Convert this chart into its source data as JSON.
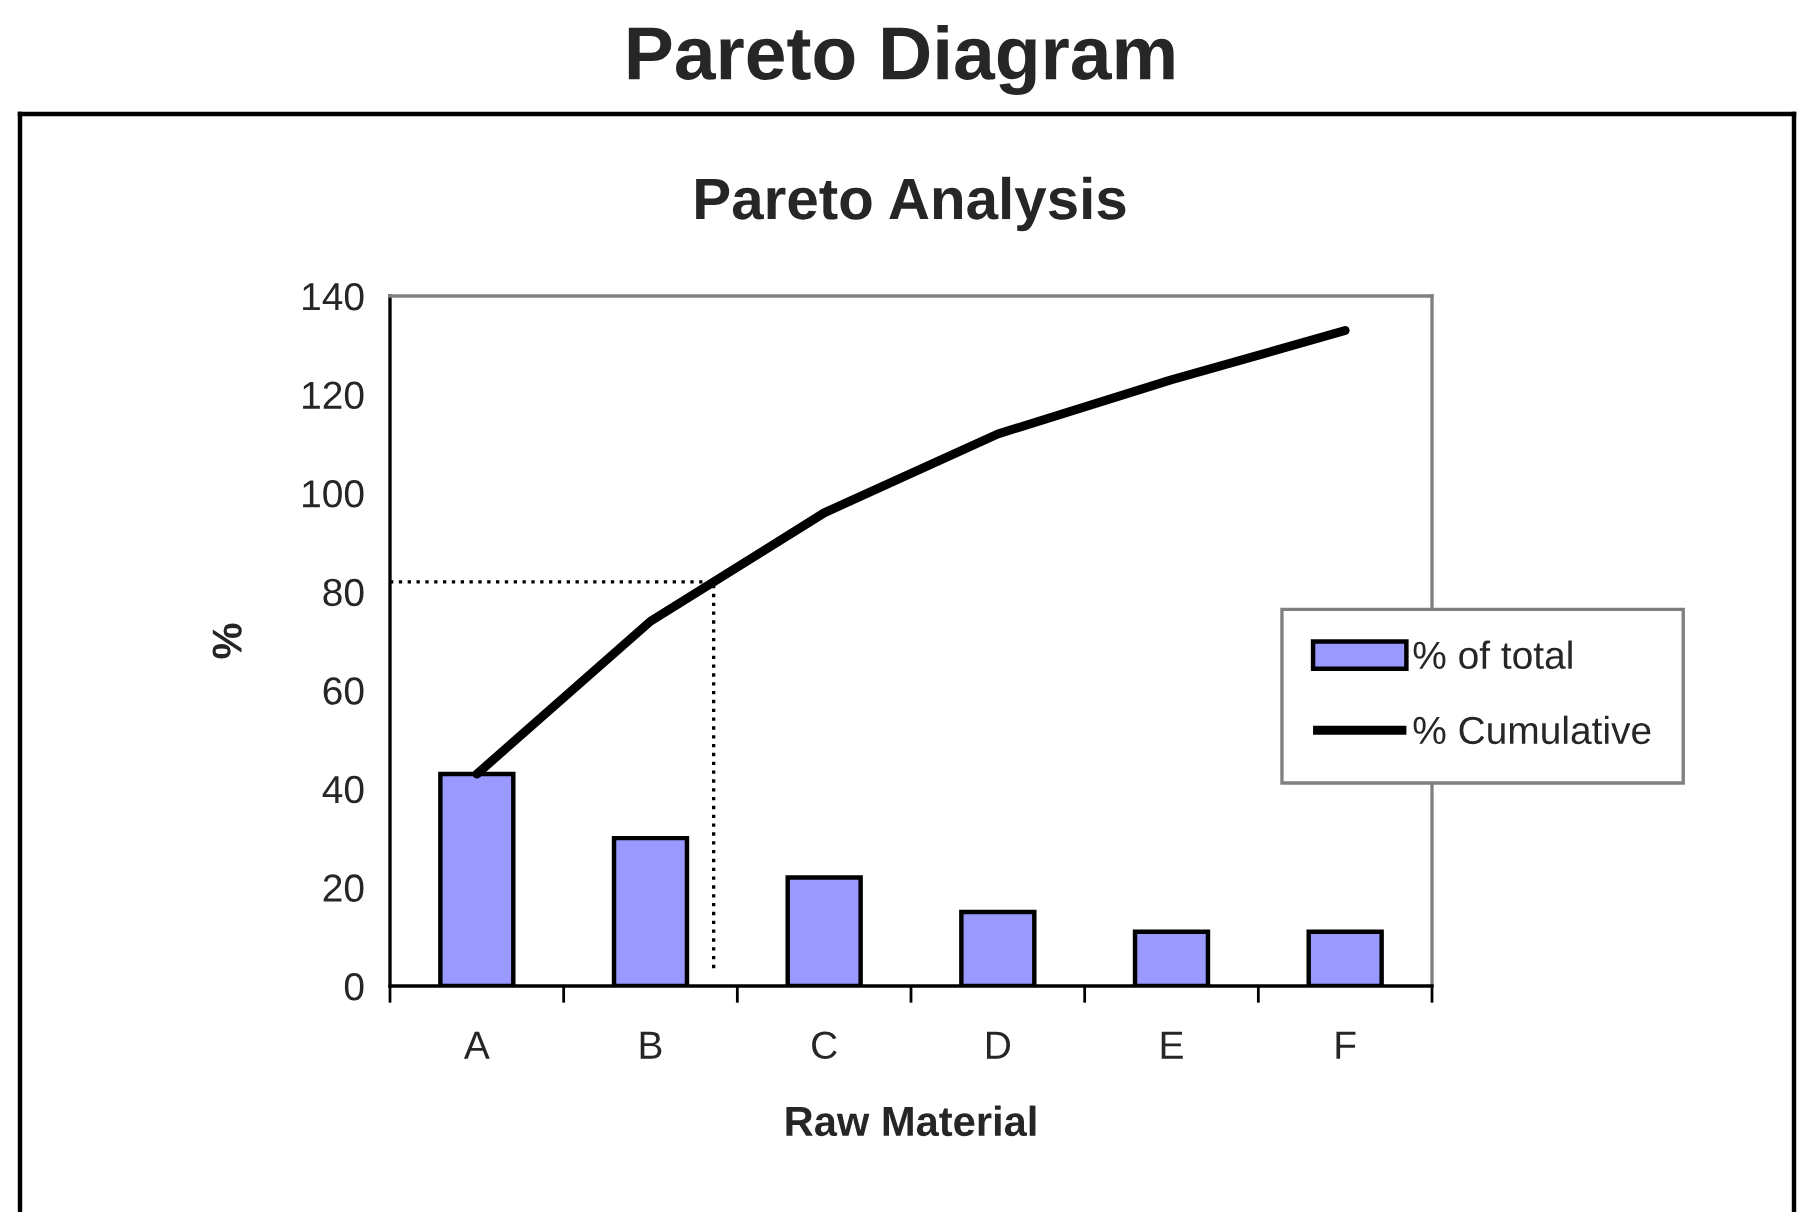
{
  "chart_data": {
    "type": "bar",
    "title": "Pareto Diagram",
    "subtitle": "Pareto Analysis",
    "xlabel": "Raw Material",
    "ylabel": "%",
    "categories": [
      "A",
      "B",
      "C",
      "D",
      "E",
      "F"
    ],
    "series": [
      {
        "name": "% of total",
        "color": "#9999ff",
        "values": [
          43,
          30,
          22,
          15,
          11,
          11
        ]
      },
      {
        "name": "% Cumulative",
        "type": "line",
        "color": "#000000",
        "values": [
          43,
          74,
          96,
          112,
          123,
          133
        ]
      }
    ],
    "ref_lines": [
      {
        "axis": "y",
        "value": 82,
        "color": "#000000",
        "line_style": "dotted"
      }
    ],
    "ylim": [
      0,
      140
    ],
    "yticks": [
      0,
      20,
      40,
      60,
      80,
      100,
      120,
      140
    ],
    "grid": false,
    "legend": "right",
    "marker": "none"
  }
}
